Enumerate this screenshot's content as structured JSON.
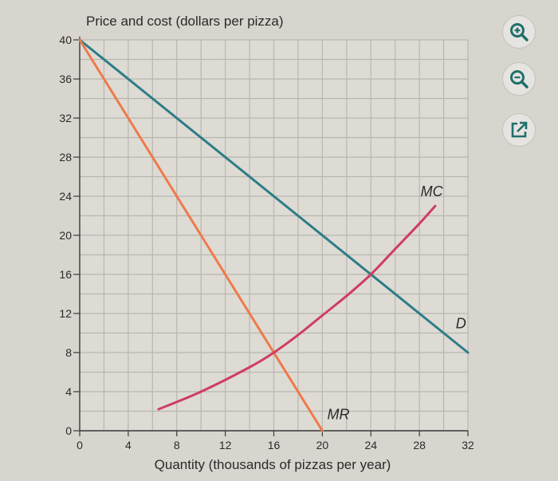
{
  "chart_data": {
    "type": "line",
    "ylabel": "Price and cost (dollars per pizza)",
    "xlabel": "Quantity (thousands of pizzas per year)",
    "xlim": [
      0,
      32
    ],
    "ylim": [
      0,
      40
    ],
    "x_ticks": [
      0,
      4,
      8,
      12,
      16,
      20,
      24,
      28,
      32
    ],
    "y_ticks": [
      0,
      4,
      8,
      12,
      16,
      20,
      24,
      28,
      32,
      36,
      40
    ],
    "grid": true,
    "grid_minor_step": 2,
    "series": [
      {
        "name": "D",
        "color": "#2e7d87",
        "points": [
          [
            0,
            40
          ],
          [
            32,
            8
          ]
        ],
        "label_at": [
          31,
          10.5
        ]
      },
      {
        "name": "MR",
        "color": "#ef7a4a",
        "points": [
          [
            0,
            40
          ],
          [
            20,
            0
          ]
        ],
        "label_at": [
          20.4,
          1.2
        ]
      },
      {
        "name": "MC",
        "color": "#cf3d63",
        "points": [
          [
            6.5,
            2.2
          ],
          [
            10,
            4
          ],
          [
            14,
            6.5
          ],
          [
            16,
            8
          ],
          [
            18,
            9.8
          ],
          [
            20,
            11.8
          ],
          [
            22,
            13.8
          ],
          [
            24,
            16
          ],
          [
            26,
            18.6
          ],
          [
            28,
            21.2
          ],
          [
            29.3,
            23
          ]
        ],
        "label_at": [
          28.1,
          24
        ]
      }
    ]
  },
  "toolbar": {
    "zoom_in_icon": "zoom-in-icon",
    "zoom_out_icon": "zoom-out-icon",
    "open_icon": "external-link-icon",
    "icon_color": "#1f6f6c"
  }
}
